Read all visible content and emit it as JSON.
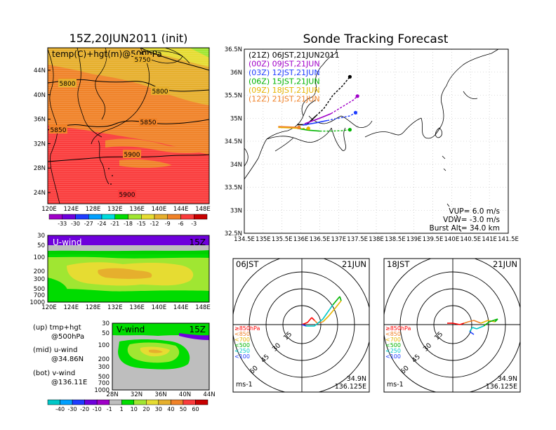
{
  "left": {
    "title": "15Z,20JUN2011 (init)",
    "map": {
      "label": "temp(C)+hgt(m)@500hPa",
      "x_ticks": [
        "120E",
        "124E",
        "128E",
        "132E",
        "136E",
        "140E",
        "144E",
        "148E"
      ],
      "y_ticks": [
        "44N",
        "40N",
        "36N",
        "32N",
        "28N",
        "24N"
      ],
      "contours": [
        "5750",
        "5800",
        "5800",
        "5850",
        "5850",
        "5900",
        "5900"
      ],
      "colorbar": [
        "-33",
        "-30",
        "-27",
        "-24",
        "-21",
        "-18",
        "-15",
        "-12",
        "-9",
        "-6",
        "-3"
      ],
      "colorbar_colors": [
        "#a000c8",
        "#6e00dc",
        "#1e3cff",
        "#00a0ff",
        "#00dcdc",
        "#00dc00",
        "#a0e632",
        "#e6dc32",
        "#e6af2d",
        "#f08228",
        "#fa3c3c",
        "#c80000"
      ]
    },
    "uwind": {
      "label": "U-wind",
      "time": "15Z",
      "y_ticks": [
        "30",
        "50",
        "100",
        "200",
        "300",
        "500",
        "700",
        "1000"
      ],
      "x_ticks": [
        "120E",
        "124E",
        "128E",
        "132E",
        "136E",
        "140E",
        "144E",
        "148E"
      ]
    },
    "vwind": {
      "label": "V-wind",
      "time": "15Z",
      "y_ticks": [
        "30",
        "50",
        "100",
        "200",
        "300",
        "500",
        "700",
        "1000"
      ],
      "x_ticks": [
        "28N",
        "32N",
        "36N",
        "40N",
        "44N"
      ]
    },
    "notes": [
      {
        "head": "(up) tmp+hgt",
        "sub": "@500hPa"
      },
      {
        "head": "(mid) u-wind",
        "sub": "@34.86N"
      },
      {
        "head": "(bot) v-wind",
        "sub": "@136.11E"
      }
    ],
    "wind_colorbar": [
      "-40",
      "-30",
      "-20",
      "-10",
      "-1",
      "1",
      "10",
      "20",
      "30",
      "40",
      "50",
      "60"
    ],
    "wind_colorbar_colors": [
      "#00c8c8",
      "#00a0ff",
      "#1e3cff",
      "#6e00dc",
      "#a000c8",
      "#bebebe",
      "#00dc00",
      "#a0e632",
      "#e6dc32",
      "#e6af2d",
      "#f08228",
      "#fa3c3c",
      "#c80000"
    ]
  },
  "right": {
    "title": "Sonde Tracking Forecast",
    "legend": [
      {
        "text": "(21Z)  06JST,21JUN2011",
        "color": "#000000"
      },
      {
        "text": "(00Z)  09JST,21JUN",
        "color": "#a000c8"
      },
      {
        "text": "(03Z)  12JST,21JUN",
        "color": "#1e3cff"
      },
      {
        "text": "(06Z)  15JST,21JUN",
        "color": "#00b400"
      },
      {
        "text": "(09Z)  18JST,21JUN",
        "color": "#e6b400"
      },
      {
        "text": "(12Z)  21JST,21JUN",
        "color": "#f08228"
      }
    ],
    "params": [
      "VUP=  6.0  m/s",
      "VDW=  -3.0  m/s",
      "Burst Alt=  34.0  km"
    ],
    "x_ticks": [
      "134.5E",
      "135E",
      "135.5E",
      "136E",
      "136.5E",
      "137E",
      "137.5E",
      "138E",
      "138.5E",
      "139E",
      "139.5E",
      "140E",
      "140.5E",
      "141E",
      "141.5E"
    ],
    "y_ticks": [
      "36.5N",
      "36N",
      "35.5N",
      "35N",
      "34.5N",
      "34N",
      "33.5N",
      "33N",
      "32.5N"
    ]
  },
  "polars": [
    {
      "time": "06JST",
      "date": "21JUN",
      "rings": [
        "15",
        "30",
        "45",
        "60"
      ],
      "levels": [
        {
          "text": "≥850hPa",
          "color": "#ff0000"
        },
        {
          "text": "<850",
          "color": "#f08228"
        },
        {
          "text": "<700",
          "color": "#e6b400"
        },
        {
          "text": "<500",
          "color": "#00b400"
        },
        {
          "text": "<250",
          "color": "#00c8c8"
        },
        {
          "text": "<100",
          "color": "#1e3cff"
        }
      ],
      "unit": "ms-1",
      "lat": "34.9N",
      "lon": "136.125E"
    },
    {
      "time": "18JST",
      "date": "21JUN",
      "rings": [
        "15",
        "30",
        "45",
        "60"
      ],
      "levels": [
        {
          "text": "≥850hPa",
          "color": "#ff0000"
        },
        {
          "text": "<850",
          "color": "#f08228"
        },
        {
          "text": "<700",
          "color": "#e6b400"
        },
        {
          "text": "<500",
          "color": "#00b400"
        },
        {
          "text": "<250",
          "color": "#00c8c8"
        },
        {
          "text": "<100",
          "color": "#1e3cff"
        }
      ],
      "unit": "ms-1",
      "lat": "34.9N",
      "lon": "136.125E"
    }
  ],
  "chart_data": [
    {
      "type": "line",
      "title": "Sonde Tracking Forecast",
      "xlim": [
        134.5,
        141.5
      ],
      "ylim": [
        32.5,
        36.5
      ],
      "grid": true,
      "series": [
        {
          "name": "(21Z)  06JST,21JUN2011",
          "x": [
            135.9,
            136.15,
            136.4,
            136.6,
            136.85,
            137.1,
            137.3
          ],
          "y": [
            34.86,
            34.86,
            35.05,
            35.2,
            35.5,
            35.7,
            35.9
          ]
        },
        {
          "name": "(00Z)  09JST,21JUN",
          "x": [
            136.1,
            136.5,
            136.8,
            137.1,
            137.4,
            137.5
          ],
          "y": [
            34.88,
            35.0,
            35.1,
            35.25,
            35.4,
            35.48
          ]
        },
        {
          "name": "(03Z)  12JST,21JUN",
          "x": [
            136.05,
            136.4,
            136.7,
            137.0,
            137.3,
            137.45
          ],
          "y": [
            34.85,
            34.9,
            34.95,
            35.0,
            35.05,
            35.12
          ]
        },
        {
          "name": "(06Z)  15JST,21JUN",
          "x": [
            135.9,
            136.2,
            136.5,
            136.8,
            137.1,
            137.3
          ],
          "y": [
            34.78,
            34.74,
            34.72,
            34.72,
            34.73,
            34.75
          ]
        },
        {
          "name": "(09Z)  18JST,21JUN",
          "x": [
            135.4,
            135.7,
            135.95,
            136.2
          ],
          "y": [
            34.8,
            34.79,
            34.78,
            34.78
          ]
        },
        {
          "name": "(12Z)  21JST,21JUN",
          "x": [
            135.4,
            135.7,
            135.95
          ],
          "y": [
            34.82,
            34.81,
            34.8
          ]
        }
      ]
    }
  ]
}
